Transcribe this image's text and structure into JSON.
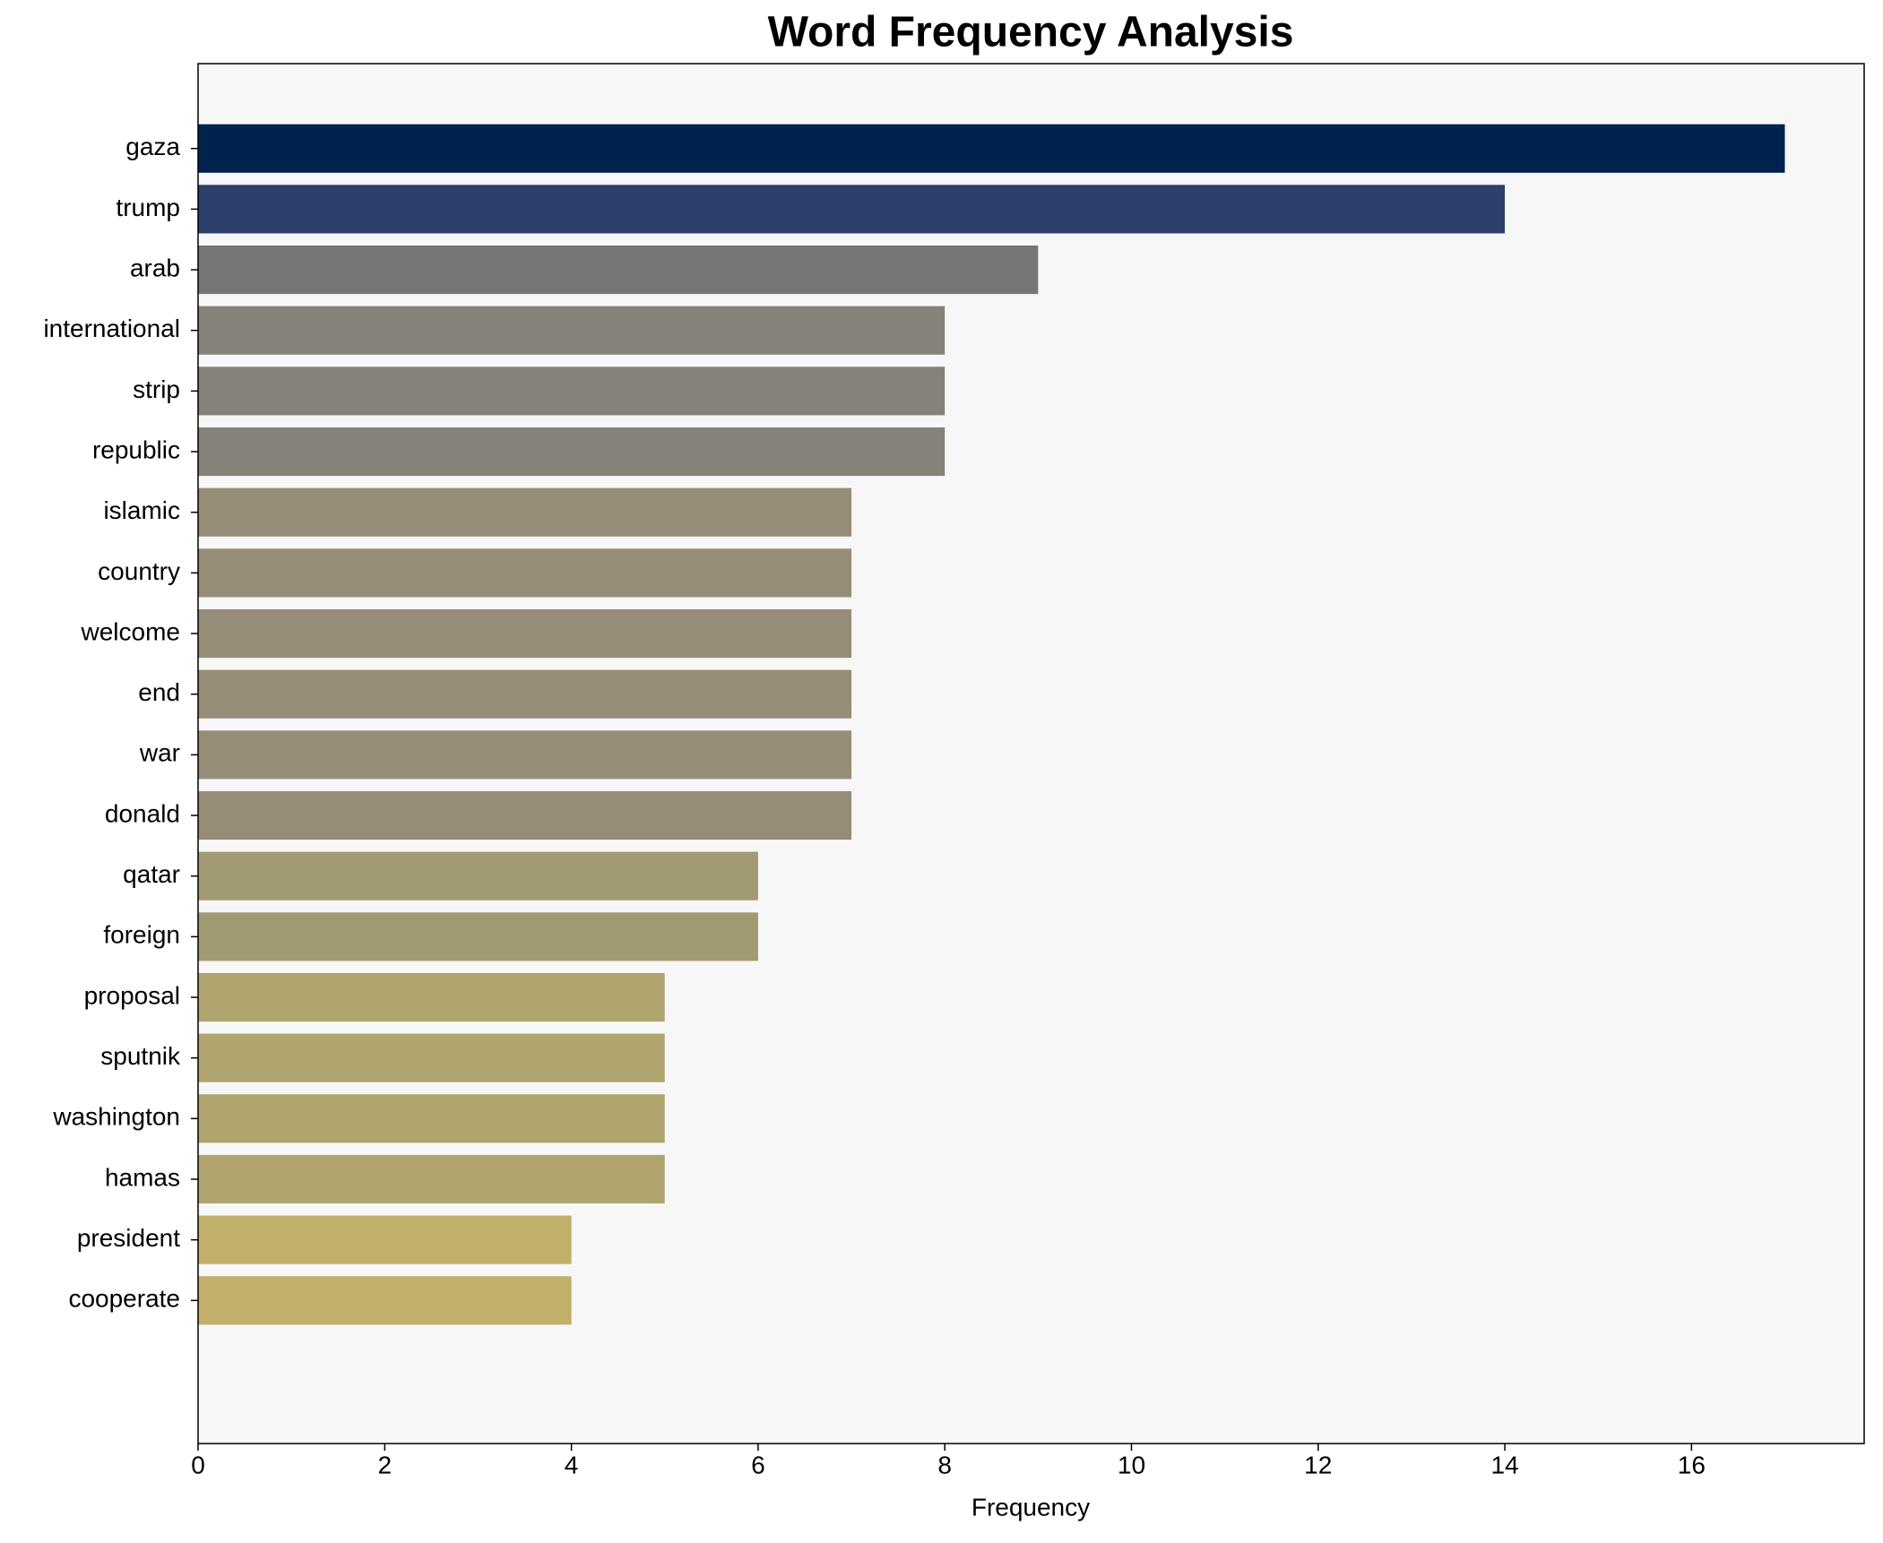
{
  "chart_data": {
    "type": "barh",
    "title": "Word Frequency Analysis",
    "x_label": "Frequency",
    "categories": [
      "gaza",
      "trump",
      "arab",
      "international",
      "strip",
      "republic",
      "islamic",
      "country",
      "welcome",
      "end",
      "war",
      "donald",
      "qatar",
      "foreign",
      "proposal",
      "sputnik",
      "washington",
      "hamas",
      "president",
      "cooperate"
    ],
    "values": [
      17,
      14,
      9,
      8,
      8,
      8,
      7,
      7,
      7,
      7,
      7,
      7,
      6,
      6,
      5,
      5,
      5,
      5,
      4,
      4
    ],
    "colors": [
      "#00224e",
      "#2e3f6b",
      "#767676",
      "#858279",
      "#858279",
      "#858279",
      "#958d77",
      "#958d77",
      "#958d77",
      "#958d77",
      "#958d77",
      "#958d77",
      "#a29a73",
      "#a29a73",
      "#b0a56f",
      "#b0a56f",
      "#b0a56f",
      "#b0a56f",
      "#c1b06a",
      "#c1b06a"
    ],
    "xlim": [
      0,
      17.85
    ],
    "xticks": [
      0,
      2,
      4,
      6,
      8,
      10,
      12,
      14,
      16
    ]
  }
}
